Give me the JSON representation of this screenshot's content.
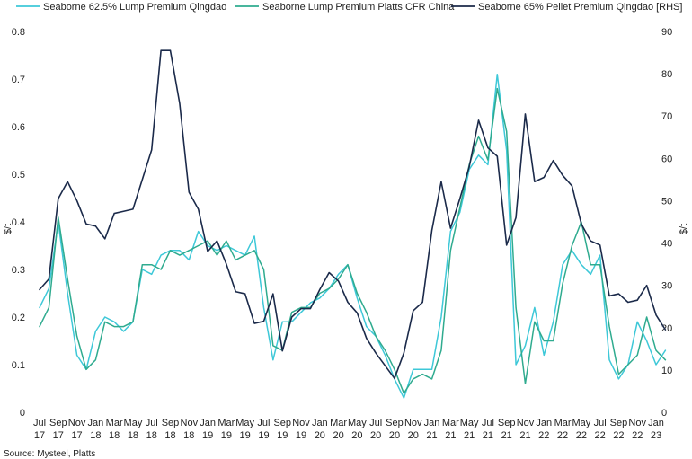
{
  "chart_data": {
    "type": "line",
    "title": "",
    "ylabel_left": "$/t",
    "ylabel_right": "$/t",
    "ylim_left": [
      0,
      0.8
    ],
    "ylim_right": [
      0,
      90
    ],
    "yticks_left": [
      "0",
      "0.1",
      "0.2",
      "0.3",
      "0.4",
      "0.5",
      "0.6",
      "0.7",
      "0.8"
    ],
    "yticks_right": [
      "0",
      "10",
      "20",
      "30",
      "40",
      "50",
      "60",
      "70",
      "80",
      "90"
    ],
    "x_tick_labels": [
      {
        "month": "Jul",
        "year": "17"
      },
      {
        "month": "Sep",
        "year": "17"
      },
      {
        "month": "Nov",
        "year": "17"
      },
      {
        "month": "Jan",
        "year": "18"
      },
      {
        "month": "Mar",
        "year": "18"
      },
      {
        "month": "May",
        "year": "18"
      },
      {
        "month": "Jul",
        "year": "18"
      },
      {
        "month": "Sep",
        "year": "18"
      },
      {
        "month": "Nov",
        "year": "18"
      },
      {
        "month": "Jan",
        "year": "19"
      },
      {
        "month": "Mar",
        "year": "19"
      },
      {
        "month": "May",
        "year": "19"
      },
      {
        "month": "Jul",
        "year": "19"
      },
      {
        "month": "Sep",
        "year": "19"
      },
      {
        "month": "Nov",
        "year": "19"
      },
      {
        "month": "Jan",
        "year": "20"
      },
      {
        "month": "Mar",
        "year": "20"
      },
      {
        "month": "May",
        "year": "20"
      },
      {
        "month": "Jul",
        "year": "20"
      },
      {
        "month": "Sep",
        "year": "20"
      },
      {
        "month": "Nov",
        "year": "20"
      },
      {
        "month": "Jan",
        "year": "21"
      },
      {
        "month": "Mar",
        "year": "21"
      },
      {
        "month": "May",
        "year": "21"
      },
      {
        "month": "Jul",
        "year": "21"
      },
      {
        "month": "Sep",
        "year": "21"
      },
      {
        "month": "Nov",
        "year": "21"
      },
      {
        "month": "Jan",
        "year": "22"
      },
      {
        "month": "Mar",
        "year": "22"
      },
      {
        "month": "May",
        "year": "22"
      },
      {
        "month": "Jul",
        "year": "22"
      },
      {
        "month": "Sep",
        "year": "22"
      },
      {
        "month": "Nov",
        "year": "22"
      },
      {
        "month": "Jan",
        "year": "23"
      }
    ],
    "x_range": [
      "Jul 17",
      "Jan 23"
    ],
    "legend_position": "top",
    "grid": false,
    "series": [
      {
        "name": "Seaborne 62.5% Lump Premium Qingdao",
        "axis": "left",
        "color": "#3ec8d8",
        "points": [
          [
            "Jul 17",
            0.22
          ],
          [
            "Aug 17",
            0.26
          ],
          [
            "Sep 17",
            0.4
          ],
          [
            "Oct 17",
            0.25
          ],
          [
            "Nov 17",
            0.12
          ],
          [
            "Dec 17",
            0.09
          ],
          [
            "Jan 18",
            0.17
          ],
          [
            "Feb 18",
            0.2
          ],
          [
            "Mar 18",
            0.19
          ],
          [
            "Apr 18",
            0.17
          ],
          [
            "May 18",
            0.19
          ],
          [
            "Jun 18",
            0.3
          ],
          [
            "Jul 18",
            0.29
          ],
          [
            "Aug 18",
            0.33
          ],
          [
            "Sep 18",
            0.34
          ],
          [
            "Oct 18",
            0.34
          ],
          [
            "Nov 18",
            0.32
          ],
          [
            "Dec 18",
            0.38
          ],
          [
            "Jan 19",
            0.35
          ],
          [
            "Feb 19",
            0.34
          ],
          [
            "Mar 19",
            0.35
          ],
          [
            "Apr 19",
            0.34
          ],
          [
            "May 19",
            0.33
          ],
          [
            "Jun 19",
            0.37
          ],
          [
            "Jul 19",
            0.22
          ],
          [
            "Aug 19",
            0.11
          ],
          [
            "Sep 19",
            0.19
          ],
          [
            "Oct 19",
            0.19
          ],
          [
            "Nov 19",
            0.21
          ],
          [
            "Dec 19",
            0.23
          ],
          [
            "Jan 20",
            0.24
          ],
          [
            "Feb 20",
            0.26
          ],
          [
            "Mar 20",
            0.29
          ],
          [
            "Apr 20",
            0.31
          ],
          [
            "May 20",
            0.24
          ],
          [
            "Jun 20",
            0.18
          ],
          [
            "Jul 20",
            0.16
          ],
          [
            "Aug 20",
            0.12
          ],
          [
            "Sep 20",
            0.07
          ],
          [
            "Oct 20",
            0.03
          ],
          [
            "Nov 20",
            0.09
          ],
          [
            "Dec 20",
            0.09
          ],
          [
            "Jan 21",
            0.09
          ],
          [
            "Feb 21",
            0.2
          ],
          [
            "Mar 21",
            0.38
          ],
          [
            "Apr 21",
            0.42
          ],
          [
            "May 21",
            0.51
          ],
          [
            "Jun 21",
            0.54
          ],
          [
            "Jul 21",
            0.52
          ],
          [
            "Aug 21",
            0.71
          ],
          [
            "Sep 21",
            0.55
          ],
          [
            "Oct 21",
            0.1
          ],
          [
            "Nov 21",
            0.14
          ],
          [
            "Dec 21",
            0.22
          ],
          [
            "Jan 22",
            0.12
          ],
          [
            "Feb 22",
            0.19
          ],
          [
            "Mar 22",
            0.31
          ],
          [
            "Apr 22",
            0.34
          ],
          [
            "May 22",
            0.31
          ],
          [
            "Jun 22",
            0.29
          ],
          [
            "Jul 22",
            0.33
          ],
          [
            "Aug 22",
            0.11
          ],
          [
            "Sep 22",
            0.07
          ],
          [
            "Oct 22",
            0.1
          ],
          [
            "Nov 22",
            0.19
          ],
          [
            "Dec 22",
            0.15
          ],
          [
            "Jan 23",
            0.1
          ],
          [
            "Feb 23",
            0.13
          ]
        ]
      },
      {
        "name": "Seaborne Lump Premium Platts CFR China",
        "axis": "left",
        "color": "#2fab8f",
        "points": [
          [
            "Jul 17",
            0.18
          ],
          [
            "Aug 17",
            0.22
          ],
          [
            "Sep 17",
            0.41
          ],
          [
            "Oct 17",
            0.28
          ],
          [
            "Nov 17",
            0.16
          ],
          [
            "Dec 17",
            0.09
          ],
          [
            "Jan 18",
            0.11
          ],
          [
            "Feb 18",
            0.19
          ],
          [
            "Mar 18",
            0.18
          ],
          [
            "Apr 18",
            0.18
          ],
          [
            "May 18",
            0.19
          ],
          [
            "Jun 18",
            0.31
          ],
          [
            "Jul 18",
            0.31
          ],
          [
            "Aug 18",
            0.3
          ],
          [
            "Sep 18",
            0.34
          ],
          [
            "Oct 18",
            0.33
          ],
          [
            "Nov 18",
            0.34
          ],
          [
            "Dec 18",
            0.35
          ],
          [
            "Jan 19",
            0.36
          ],
          [
            "Feb 19",
            0.33
          ],
          [
            "Mar 19",
            0.36
          ],
          [
            "Apr 19",
            0.32
          ],
          [
            "May 19",
            0.33
          ],
          [
            "Jun 19",
            0.34
          ],
          [
            "Jul 19",
            0.3
          ],
          [
            "Aug 19",
            0.14
          ],
          [
            "Sep 19",
            0.13
          ],
          [
            "Oct 19",
            0.21
          ],
          [
            "Nov 19",
            0.22
          ],
          [
            "Dec 19",
            0.22
          ],
          [
            "Jan 20",
            0.25
          ],
          [
            "Feb 20",
            0.26
          ],
          [
            "Mar 20",
            0.28
          ],
          [
            "Apr 20",
            0.31
          ],
          [
            "May 20",
            0.25
          ],
          [
            "Jun 20",
            0.21
          ],
          [
            "Jul 20",
            0.16
          ],
          [
            "Aug 20",
            0.13
          ],
          [
            "Sep 20",
            0.09
          ],
          [
            "Oct 20",
            0.04
          ],
          [
            "Nov 20",
            0.07
          ],
          [
            "Dec 20",
            0.08
          ],
          [
            "Jan 21",
            0.07
          ],
          [
            "Feb 21",
            0.13
          ],
          [
            "Mar 21",
            0.34
          ],
          [
            "Apr 21",
            0.43
          ],
          [
            "May 21",
            0.52
          ],
          [
            "Jun 21",
            0.58
          ],
          [
            "Jul 21",
            0.53
          ],
          [
            "Aug 21",
            0.68
          ],
          [
            "Sep 21",
            0.59
          ],
          [
            "Oct 21",
            0.22
          ],
          [
            "Nov 21",
            0.06
          ],
          [
            "Dec 21",
            0.19
          ],
          [
            "Jan 22",
            0.15
          ],
          [
            "Feb 22",
            0.15
          ],
          [
            "Mar 22",
            0.27
          ],
          [
            "Apr 22",
            0.35
          ],
          [
            "May 22",
            0.4
          ],
          [
            "Jun 22",
            0.31
          ],
          [
            "Jul 22",
            0.31
          ],
          [
            "Aug 22",
            0.18
          ],
          [
            "Sep 22",
            0.08
          ],
          [
            "Oct 22",
            0.1
          ],
          [
            "Nov 22",
            0.12
          ],
          [
            "Dec 22",
            0.2
          ],
          [
            "Jan 23",
            0.13
          ],
          [
            "Feb 23",
            0.11
          ]
        ]
      },
      {
        "name": "Seaborne 65% Pellet Premium Qingdao [RHS]",
        "axis": "right",
        "color": "#1b2a4a",
        "points": [
          [
            "Jul 17",
            29.0
          ],
          [
            "Aug 17",
            31.5
          ],
          [
            "Sep 17",
            50.5
          ],
          [
            "Oct 17",
            54.5
          ],
          [
            "Nov 17",
            50.0
          ],
          [
            "Dec 17",
            44.5
          ],
          [
            "Jan 18",
            44.0
          ],
          [
            "Feb 18",
            41.0
          ],
          [
            "Mar 18",
            47.0
          ],
          [
            "Apr 18",
            47.5
          ],
          [
            "May 18",
            48.0
          ],
          [
            "Jun 18",
            55.0
          ],
          [
            "Jul 18",
            62.0
          ],
          [
            "Aug 18",
            85.5
          ],
          [
            "Sep 18",
            85.5
          ],
          [
            "Oct 18",
            73.0
          ],
          [
            "Nov 18",
            52.0
          ],
          [
            "Dec 18",
            48.0
          ],
          [
            "Jan 19",
            38.0
          ],
          [
            "Feb 19",
            40.5
          ],
          [
            "Mar 19",
            35.0
          ],
          [
            "Apr 19",
            28.5
          ],
          [
            "May 19",
            28.0
          ],
          [
            "Jun 19",
            21.0
          ],
          [
            "Jul 19",
            21.5
          ],
          [
            "Aug 19",
            28.0
          ],
          [
            "Sep 19",
            14.5
          ],
          [
            "Oct 19",
            22.5
          ],
          [
            "Nov 19",
            24.5
          ],
          [
            "Dec 19",
            24.5
          ],
          [
            "Jan 20",
            29.0
          ],
          [
            "Feb 20",
            33.0
          ],
          [
            "Mar 20",
            31.0
          ],
          [
            "Apr 20",
            26.0
          ],
          [
            "May 20",
            23.5
          ],
          [
            "Jun 20",
            17.5
          ],
          [
            "Jul 20",
            14.0
          ],
          [
            "Aug 20",
            11.0
          ],
          [
            "Sep 20",
            8.0
          ],
          [
            "Oct 20",
            14.0
          ],
          [
            "Nov 20",
            24.0
          ],
          [
            "Dec 20",
            26.0
          ],
          [
            "Jan 21",
            43.0
          ],
          [
            "Feb 21",
            54.5
          ],
          [
            "Mar 21",
            43.5
          ],
          [
            "Apr 21",
            50.5
          ],
          [
            "May 21",
            58.0
          ],
          [
            "Jun 21",
            69.0
          ],
          [
            "Jul 21",
            62.5
          ],
          [
            "Aug 21",
            60.5
          ],
          [
            "Sep 21",
            39.5
          ],
          [
            "Oct 21",
            46.0
          ],
          [
            "Nov 21",
            70.5
          ],
          [
            "Dec 21",
            54.5
          ],
          [
            "Jan 22",
            55.5
          ],
          [
            "Feb 22",
            59.5
          ],
          [
            "Mar 22",
            56.0
          ],
          [
            "Apr 22",
            53.5
          ],
          [
            "May 22",
            44.5
          ],
          [
            "Jun 22",
            40.5
          ],
          [
            "Jul 22",
            39.5
          ],
          [
            "Aug 22",
            27.5
          ],
          [
            "Sep 22",
            28.0
          ],
          [
            "Oct 22",
            26.0
          ],
          [
            "Nov 22",
            26.5
          ],
          [
            "Dec 22",
            30.0
          ],
          [
            "Jan 23",
            23.0
          ],
          [
            "Feb 23",
            19.5
          ]
        ]
      }
    ]
  },
  "source": "Source: Mysteel, Platts"
}
